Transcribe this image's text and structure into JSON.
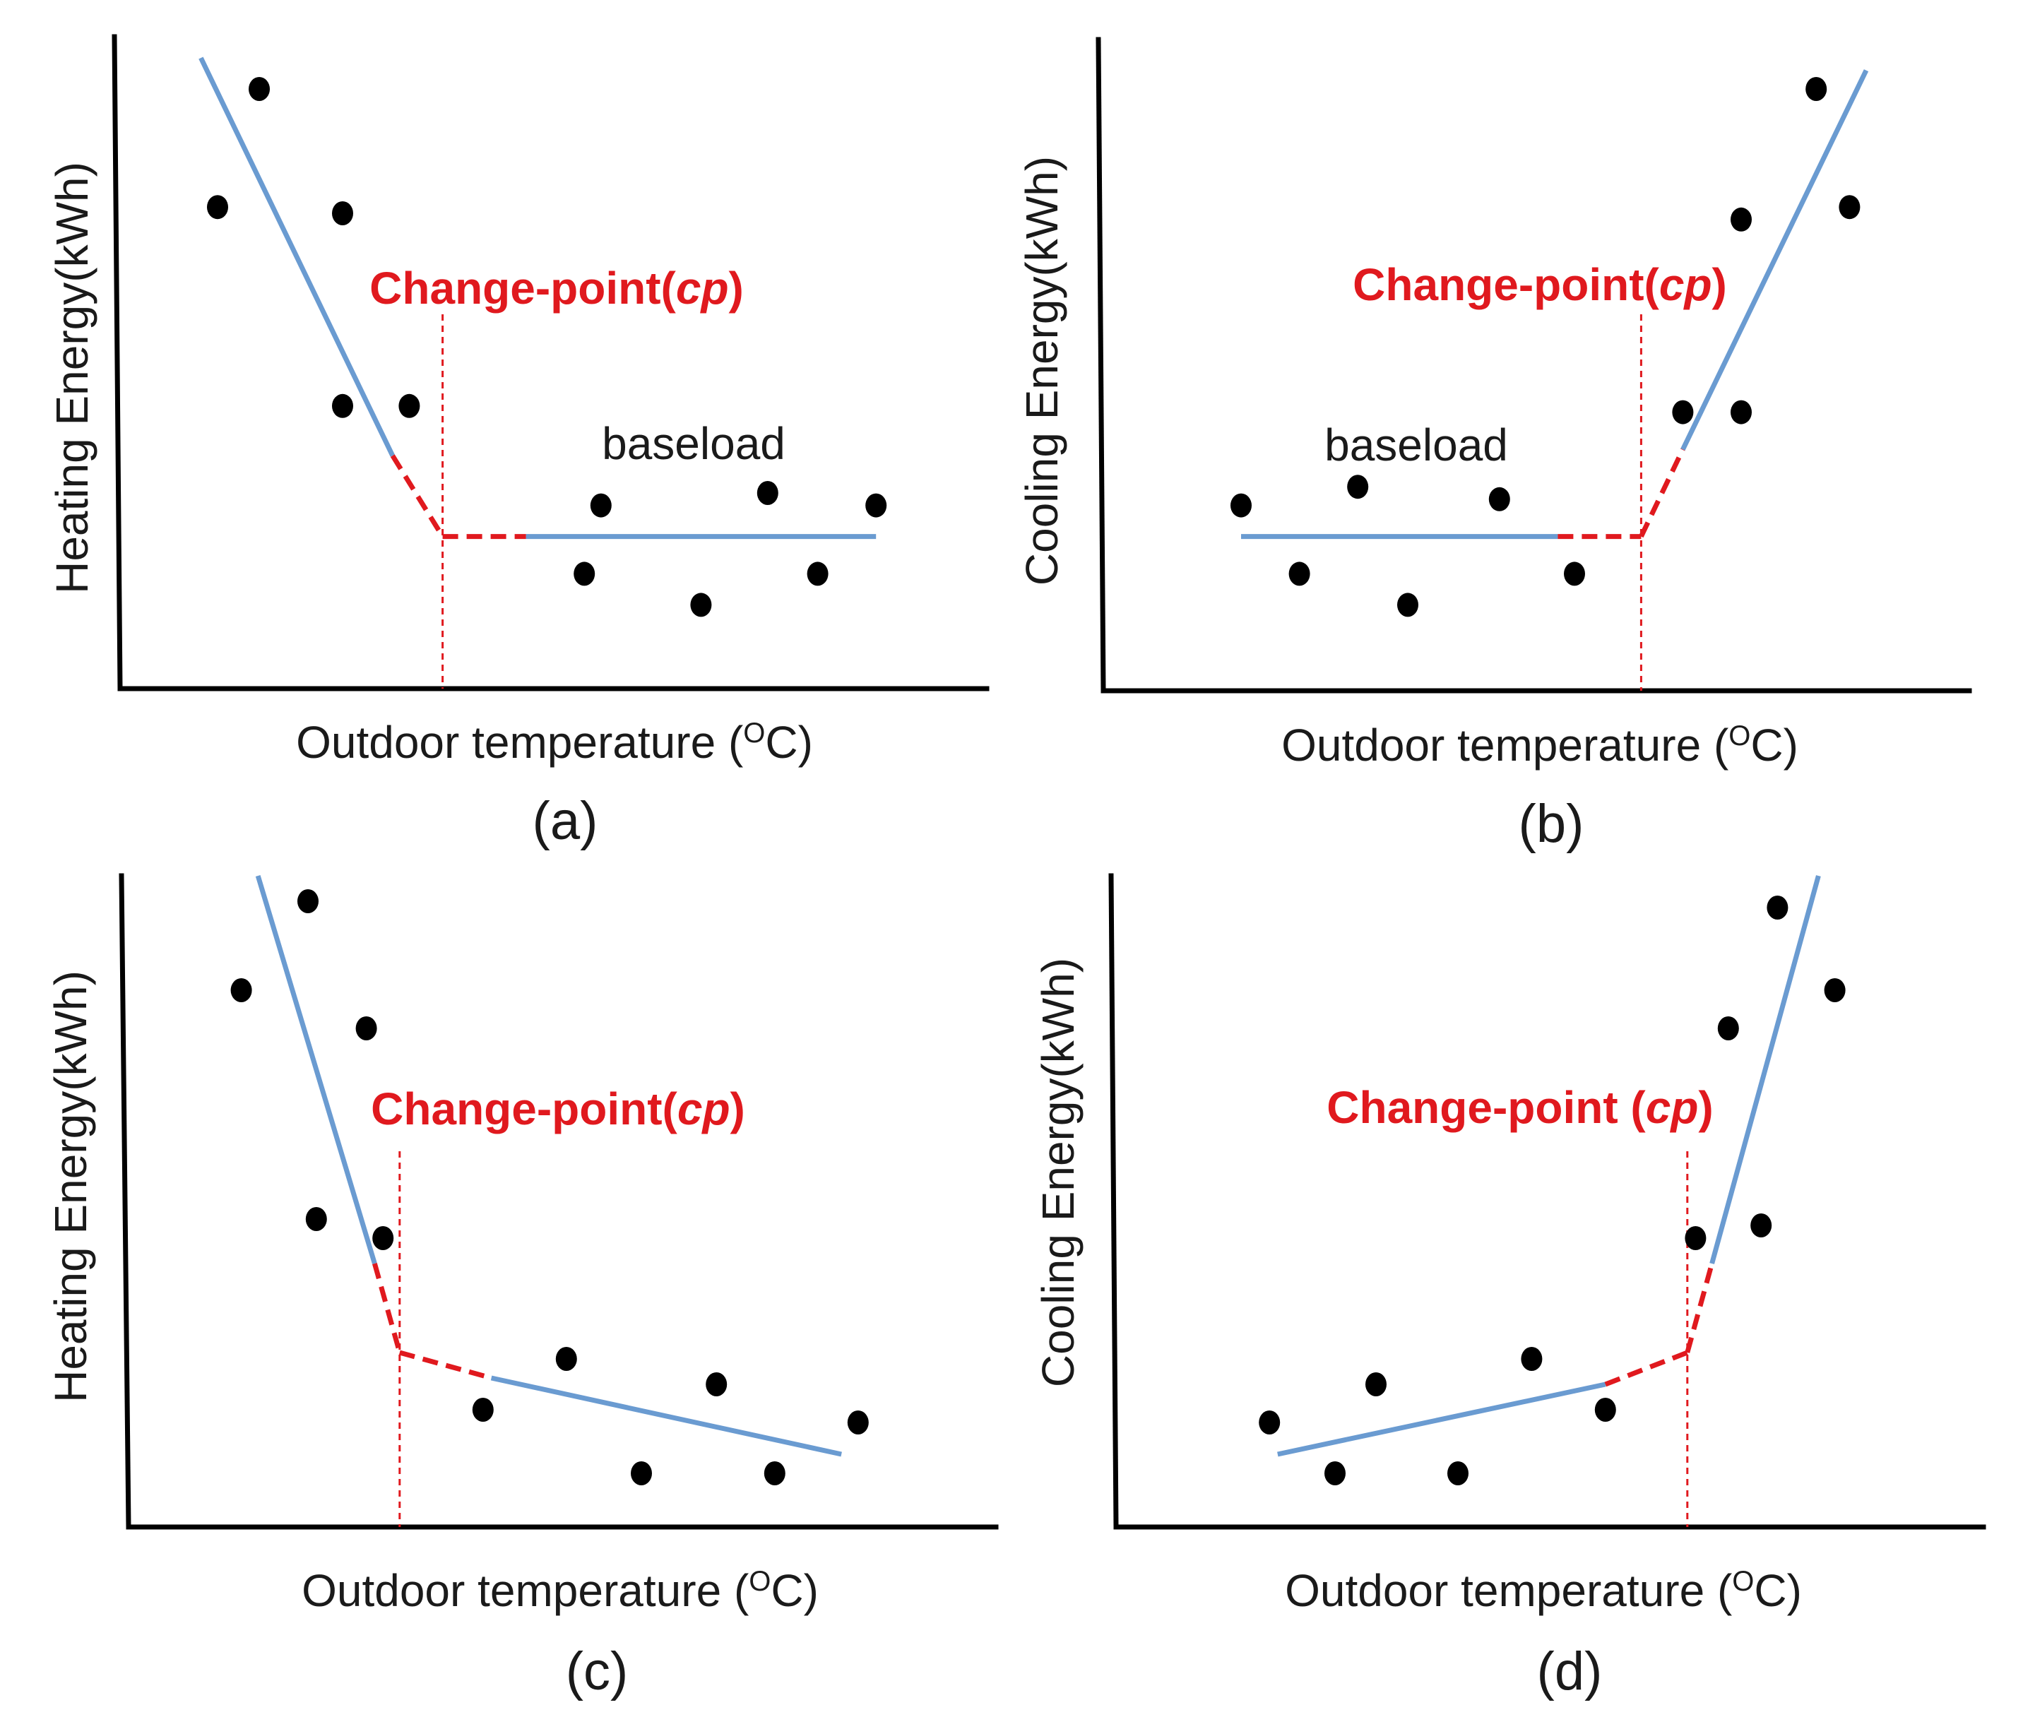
{
  "chart_data": [
    {
      "panel": "a",
      "type": "scatter",
      "caption": "(a)",
      "xlabel": "Outdoor temperature (°C)",
      "xlabel_main": "Outdoor temperature (",
      "xlabel_unit": "O",
      "xlabel_end": "C)",
      "ylabel": "Heating Energy(kWh)",
      "annotation": "Change-point(",
      "annotation_cp": "cp",
      "annotation_end": ")",
      "baseload_label": "baseload",
      "xlim": [
        0,
        100
      ],
      "ylim": [
        0,
        100
      ],
      "points": [
        [
          10,
          76
        ],
        [
          15,
          95
        ],
        [
          25,
          75
        ],
        [
          25,
          44
        ],
        [
          33,
          44
        ],
        [
          54,
          17
        ],
        [
          56,
          28
        ],
        [
          68,
          12
        ],
        [
          76,
          30
        ],
        [
          82,
          17
        ],
        [
          89,
          28
        ]
      ],
      "change_point": {
        "x": 37,
        "y": 23
      },
      "solid_segments": [
        [
          [
            8,
            100
          ],
          [
            31,
            36
          ]
        ],
        [
          [
            47,
            23
          ],
          [
            89,
            23
          ]
        ]
      ],
      "dashed_segments": [
        [
          [
            31,
            36
          ],
          [
            37,
            23
          ]
        ],
        [
          [
            37,
            23
          ],
          [
            47,
            23
          ]
        ]
      ]
    },
    {
      "panel": "b",
      "type": "scatter",
      "caption": "(b)",
      "xlabel": "Outdoor temperature (°C)",
      "xlabel_main": "Outdoor temperature (",
      "xlabel_unit": "O",
      "xlabel_end": "C)",
      "ylabel": "Cooling Energy(kWh)",
      "annotation": "Change-point(",
      "annotation_cp": "cp",
      "annotation_end": ")",
      "baseload_label": "baseload",
      "xlim": [
        0,
        100
      ],
      "ylim": [
        0,
        100
      ],
      "points": [
        [
          15,
          28
        ],
        [
          22,
          17
        ],
        [
          29,
          31
        ],
        [
          35,
          12
        ],
        [
          46,
          29
        ],
        [
          55,
          17
        ],
        [
          68,
          43
        ],
        [
          75,
          43
        ],
        [
          75,
          74
        ],
        [
          84,
          95
        ],
        [
          88,
          76
        ]
      ],
      "change_point": {
        "x": 63,
        "y": 23
      },
      "solid_segments": [
        [
          [
            15,
            23
          ],
          [
            53,
            23
          ]
        ],
        [
          [
            68,
            37
          ],
          [
            90,
            98
          ]
        ]
      ],
      "dashed_segments": [
        [
          [
            53,
            23
          ],
          [
            63,
            23
          ]
        ],
        [
          [
            63,
            23
          ],
          [
            68,
            37
          ]
        ]
      ]
    },
    {
      "panel": "c",
      "type": "scatter",
      "caption": "(c)",
      "xlabel": "Outdoor temperature (°C)",
      "xlabel_main": "Outdoor temperature (",
      "xlabel_unit": "O",
      "xlabel_end": "C)",
      "ylabel": "Heating Energy(kWh)",
      "annotation": "Change-point(",
      "annotation_cp": "cp",
      "annotation_end": ")",
      "baseload_label": "",
      "xlim": [
        0,
        100
      ],
      "ylim": [
        0,
        100
      ],
      "points": [
        [
          12,
          82
        ],
        [
          20,
          96
        ],
        [
          27,
          76
        ],
        [
          21,
          46
        ],
        [
          29,
          43
        ],
        [
          41,
          16
        ],
        [
          51,
          24
        ],
        [
          60,
          6
        ],
        [
          69,
          20
        ],
        [
          76,
          6
        ],
        [
          86,
          14
        ]
      ],
      "change_point": {
        "x": 31,
        "y": 25
      },
      "solid_segments": [
        [
          [
            14,
            100
          ],
          [
            28,
            39
          ]
        ],
        [
          [
            42,
            21
          ],
          [
            84,
            9
          ]
        ]
      ],
      "dashed_segments": [
        [
          [
            28,
            39
          ],
          [
            31,
            25
          ]
        ],
        [
          [
            31,
            25
          ],
          [
            42,
            21
          ]
        ]
      ]
    },
    {
      "panel": "d",
      "type": "scatter",
      "caption": "(d)",
      "xlabel": "Outdoor temperature (°C)",
      "xlabel_main": "Outdoor temperature (",
      "xlabel_unit": "O",
      "xlabel_end": "C)",
      "ylabel": "Cooling Energy(kWh)",
      "annotation": "Change-point (",
      "annotation_cp": "cp",
      "annotation_end": ")",
      "baseload_label": "",
      "xlim": [
        0,
        100
      ],
      "ylim": [
        0,
        100
      ],
      "points": [
        [
          17,
          14
        ],
        [
          25,
          6
        ],
        [
          30,
          20
        ],
        [
          40,
          6
        ],
        [
          49,
          24
        ],
        [
          58,
          16
        ],
        [
          69,
          43
        ],
        [
          73,
          76
        ],
        [
          77,
          45
        ],
        [
          79,
          95
        ],
        [
          86,
          82
        ]
      ],
      "change_point": {
        "x": 68,
        "y": 25
      },
      "solid_segments": [
        [
          [
            18,
            9
          ],
          [
            58,
            20
          ]
        ],
        [
          [
            71,
            39
          ],
          [
            84,
            100
          ]
        ]
      ],
      "dashed_segments": [
        [
          [
            58,
            20
          ],
          [
            68,
            25
          ]
        ],
        [
          [
            68,
            25
          ],
          [
            71,
            39
          ]
        ]
      ]
    }
  ]
}
